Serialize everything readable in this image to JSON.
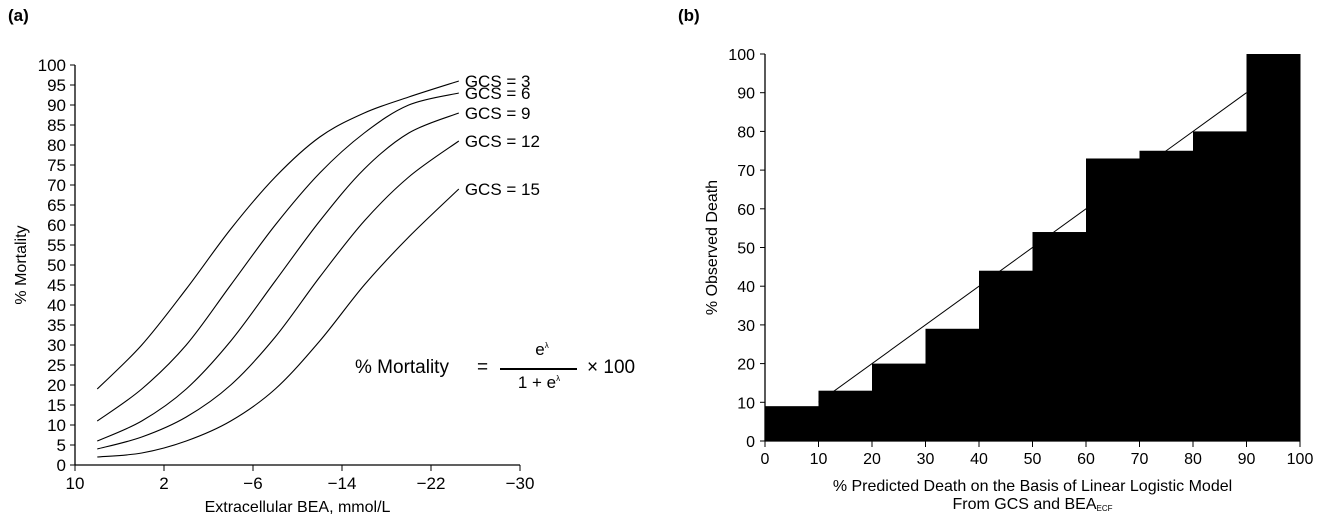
{
  "panel_a_label": "(a)",
  "panel_b_label": "(b)",
  "formula": {
    "lhs": "% Mortality",
    "equals": "=",
    "numerator": "e",
    "numerator_sup": "λ",
    "denominator": "1 + e",
    "denominator_sup": "λ",
    "tail": "× 100"
  },
  "chart_data": [
    {
      "type": "line",
      "title": "",
      "xlabel": "Extracellular BEA, mmol/L",
      "ylabel": "% Mortality",
      "xlim": [
        10,
        -30
      ],
      "ylim": [
        0,
        100
      ],
      "x_ticks": [
        10,
        2,
        -6,
        -14,
        -22,
        -30
      ],
      "x_tick_labels": [
        "10",
        "2",
        "−6",
        "−14",
        "−22",
        "−30"
      ],
      "y_ticks": [
        0,
        5,
        10,
        15,
        20,
        25,
        30,
        35,
        40,
        45,
        50,
        55,
        60,
        65,
        70,
        75,
        80,
        85,
        90,
        95,
        100
      ],
      "x": [
        8,
        4,
        0,
        -4,
        -8,
        -12,
        -16,
        -20,
        -24.5
      ],
      "series": [
        {
          "name": "GCS = 3",
          "values": [
            19,
            30,
            44,
            59,
            72,
            82,
            88,
            92,
            96
          ]
        },
        {
          "name": "GCS = 6",
          "values": [
            11,
            19,
            30,
            45,
            60,
            73,
            83,
            90,
            93
          ]
        },
        {
          "name": "GCS = 9",
          "values": [
            6,
            11,
            19,
            31,
            46,
            61,
            74,
            83,
            88
          ]
        },
        {
          "name": "GCS = 12",
          "values": [
            4,
            7,
            12,
            20,
            32,
            47,
            61,
            72,
            81
          ]
        },
        {
          "name": "GCS = 15",
          "values": [
            2,
            3,
            6,
            11,
            19,
            31,
            45,
            57,
            69
          ]
        }
      ],
      "grid": false,
      "legend": "none"
    },
    {
      "type": "bar",
      "title": "",
      "xlabel_line1": "% Predicted Death on the Basis of Linear Logistic Model",
      "xlabel_line2": "From GCS and BEA",
      "xlabel_line2_sub": "ECF",
      "ylabel": "% Observed Death",
      "xlim": [
        0,
        100
      ],
      "ylim": [
        0,
        100
      ],
      "x_ticks": [
        0,
        10,
        20,
        30,
        40,
        50,
        60,
        70,
        80,
        90,
        100
      ],
      "y_ticks": [
        0,
        10,
        20,
        30,
        40,
        50,
        60,
        70,
        80,
        90,
        100
      ],
      "categories": [
        "0–10",
        "10–20",
        "20–30",
        "30–40",
        "40–50",
        "50–60",
        "60–70",
        "70–80",
        "80–90",
        "90–100"
      ],
      "values": [
        9,
        13,
        20,
        29,
        44,
        54,
        73,
        75,
        80,
        100
      ],
      "reference_line": {
        "from": [
          10,
          10
        ],
        "to": [
          90,
          90
        ]
      },
      "grid": false,
      "legend": "none"
    }
  ]
}
